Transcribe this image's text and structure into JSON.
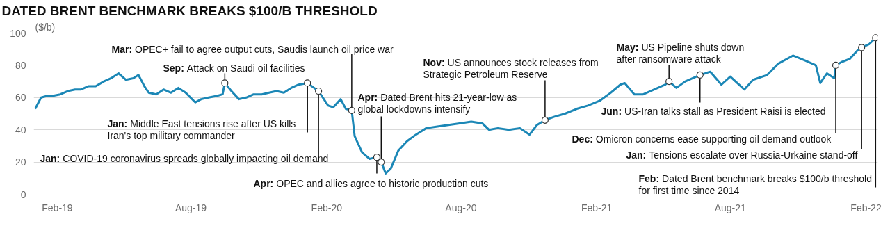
{
  "chart_data": {
    "type": "line",
    "title": "DATED BRENT BENCHMARK BREAKS $100/B THRESHOLD",
    "ylabel": "($/b)",
    "xlim": [
      "2018-12-31",
      "2022-02-17"
    ],
    "ylim": [
      0,
      100
    ],
    "yticks": [
      0,
      20,
      40,
      60,
      80,
      100
    ],
    "xticks": [
      {
        "value": "2019-02-01",
        "label": "Feb-19"
      },
      {
        "value": "2019-08-01",
        "label": "Aug-19"
      },
      {
        "value": "2020-02-01",
        "label": "Feb-20"
      },
      {
        "value": "2020-08-01",
        "label": "Aug-20"
      },
      {
        "value": "2021-02-01",
        "label": "Feb-21"
      },
      {
        "value": "2021-08-01",
        "label": "Aug-21"
      },
      {
        "value": "2022-02-01",
        "label": "Feb-22"
      }
    ],
    "grid": "y",
    "marker": "none",
    "line_style": "solid",
    "x": [
      "2019-01-02",
      "2019-01-10",
      "2019-01-18",
      "2019-01-25",
      "2019-02-05",
      "2019-02-15",
      "2019-02-25",
      "2019-03-05",
      "2019-03-15",
      "2019-03-25",
      "2019-04-05",
      "2019-04-15",
      "2019-04-25",
      "2019-05-05",
      "2019-05-15",
      "2019-05-22",
      "2019-05-30",
      "2019-06-05",
      "2019-06-15",
      "2019-06-25",
      "2019-07-05",
      "2019-07-15",
      "2019-07-25",
      "2019-08-07",
      "2019-08-15",
      "2019-08-25",
      "2019-09-05",
      "2019-09-13",
      "2019-09-16",
      "2019-09-25",
      "2019-10-05",
      "2019-10-15",
      "2019-10-25",
      "2019-11-05",
      "2019-11-15",
      "2019-11-25",
      "2019-12-05",
      "2019-12-15",
      "2019-12-25",
      "2020-01-06",
      "2020-01-15",
      "2020-01-21",
      "2020-02-03",
      "2020-02-10",
      "2020-02-20",
      "2020-02-27",
      "2020-03-06",
      "2020-03-10",
      "2020-03-20",
      "2020-03-30",
      "2020-04-09",
      "2020-04-15",
      "2020-04-21",
      "2020-04-28",
      "2020-05-08",
      "2020-05-20",
      "2020-06-01",
      "2020-06-15",
      "2020-06-30",
      "2020-07-15",
      "2020-07-30",
      "2020-08-15",
      "2020-08-30",
      "2020-09-08",
      "2020-09-20",
      "2020-10-05",
      "2020-10-20",
      "2020-11-02",
      "2020-11-12",
      "2020-11-23",
      "2020-12-05",
      "2020-12-20",
      "2021-01-05",
      "2021-01-20",
      "2021-02-05",
      "2021-02-20",
      "2021-03-05",
      "2021-03-11",
      "2021-03-24",
      "2021-04-05",
      "2021-04-20",
      "2021-05-05",
      "2021-05-10",
      "2021-05-20",
      "2021-06-01",
      "2021-06-21",
      "2021-07-05",
      "2021-07-20",
      "2021-08-01",
      "2021-08-20",
      "2021-09-01",
      "2021-09-20",
      "2021-10-05",
      "2021-10-25",
      "2021-11-10",
      "2021-11-25",
      "2021-12-01",
      "2021-12-10",
      "2021-12-20",
      "2021-12-22",
      "2021-12-30",
      "2022-01-10",
      "2022-01-20",
      "2022-01-26",
      "2022-02-05",
      "2022-02-14"
    ],
    "series": [
      {
        "color": "#1b87b6",
        "values": [
          53,
          60,
          61,
          61,
          62,
          64,
          65,
          65,
          67,
          67,
          70,
          72,
          75,
          71,
          72,
          74,
          67,
          63,
          62,
          65,
          63,
          66,
          63,
          57,
          59,
          60,
          61,
          62,
          69,
          64,
          59,
          60,
          62,
          62,
          63,
          64,
          63,
          66,
          68,
          69,
          66,
          64,
          55,
          54,
          59,
          53,
          52,
          36,
          26,
          22,
          23,
          20,
          13,
          16,
          27,
          33,
          37,
          41,
          42,
          43,
          44,
          45,
          44,
          40,
          41,
          40,
          41,
          37,
          43,
          46,
          48,
          50,
          53,
          55,
          58,
          63,
          68,
          69,
          62,
          62,
          65,
          68,
          70,
          66,
          70,
          74,
          76,
          68,
          73,
          65,
          71,
          74,
          81,
          86,
          83,
          80,
          69,
          75,
          72,
          80,
          82,
          84,
          89,
          91,
          93,
          97
        ]
      }
    ],
    "annotations": [
      {
        "text": "Sep: Attack on Saudi oil facilities",
        "x": "2019-09-16",
        "y": 69
      },
      {
        "text": "Jan: Middle East tensions rise after US kills\nIran's top military commander",
        "x": "2020-01-06",
        "y": 69
      },
      {
        "text": "Jan: COVID-19 coronavirus spreads globally impacting oil demand",
        "x": "2020-01-21",
        "y": 64
      },
      {
        "text": "Mar: OPEC+ fail to agree output cuts, Saudis launch oil price war",
        "x": "2020-03-06",
        "y": 52
      },
      {
        "text": "Apr: Dated Brent hits 21-year-low as\nglobal lockdowns intensify",
        "x": "2020-04-15",
        "y": 20
      },
      {
        "text": "Apr: OPEC and allies agree to historic production cuts",
        "x": "2020-04-09",
        "y": 23
      },
      {
        "text": "Nov: US announces stock releases from\nStrategic Petroleum Reserve",
        "x": "2020-11-23",
        "y": 46
      },
      {
        "text": "May: US Pipeline shuts down\nafter ransomware attack",
        "x": "2021-05-10",
        "y": 70
      },
      {
        "text": "Jun: US-Iran talks stall as President Raisi is elected",
        "x": "2021-06-21",
        "y": 74
      },
      {
        "text": "Dec: Omicron concerns ease supporting oil demand outlook",
        "x": "2021-12-22",
        "y": 80
      },
      {
        "text": "Jan: Tensions escalate over Russia-Urkaine stand-off",
        "x": "2022-01-26",
        "y": 91
      },
      {
        "text": "Feb: Dated Brent benchmark breaks $100/b threshold\nfor first time since 2014",
        "x": "2022-02-14",
        "y": 97
      }
    ]
  }
}
